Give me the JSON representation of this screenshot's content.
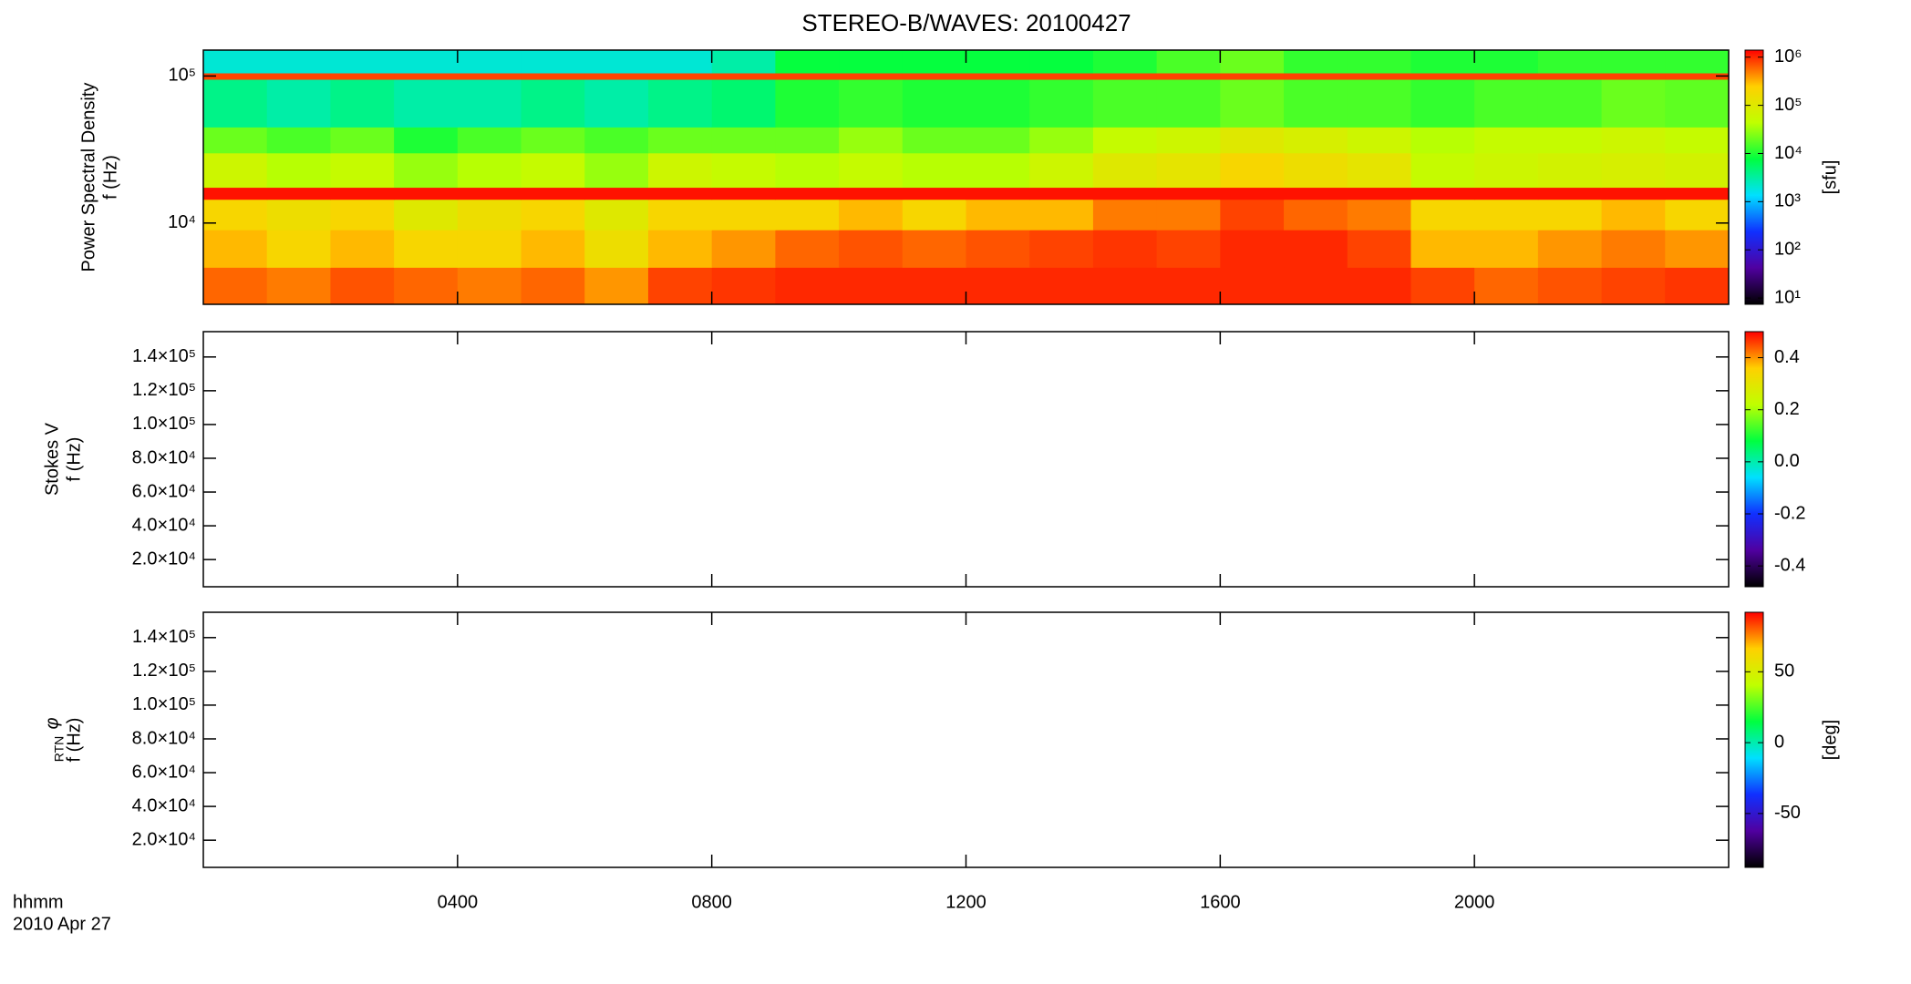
{
  "chart_data": {
    "type": "spectrogram",
    "title": "STEREO-B/WAVES: 20100427",
    "x_labels": [
      "hhmm",
      "2010 Apr 27"
    ],
    "xlim": [
      0,
      24
    ],
    "xticks": [
      {
        "value": 4,
        "label": "0400"
      },
      {
        "value": 8,
        "label": "0800"
      },
      {
        "value": 12,
        "label": "1200"
      },
      {
        "value": 16,
        "label": "1600"
      },
      {
        "value": 20,
        "label": "2000"
      }
    ],
    "colormap": [
      "#000000",
      "#5000a0",
      "#1030ff",
      "#00e0ff",
      "#00ff40",
      "#c0ff00",
      "#ffd000",
      "#ff0000"
    ],
    "panels": [
      {
        "ylabels": [
          "Power Spectral Density",
          "f (Hz)"
        ],
        "ylog": true,
        "ylim": [
          2800,
          150000
        ],
        "yticks": [
          {
            "value": 10000,
            "label": "10⁴"
          },
          {
            "value": 100000,
            "label": "10⁵"
          }
        ],
        "time_bins": [
          0,
          1,
          2,
          3,
          4,
          5,
          6,
          7,
          8,
          9,
          10,
          11,
          12,
          13,
          14,
          15,
          16,
          17,
          18,
          19,
          20,
          21,
          22,
          23,
          24
        ],
        "freq_bins": [
          2800,
          5000,
          9000,
          14500,
          17500,
          30000,
          45000,
          95000,
          105000,
          150000
        ],
        "z": [
          [
            600000,
            500000,
            700000,
            600000,
            500000,
            600000,
            400000,
            800000,
            900000,
            1000000,
            1000000,
            1000000,
            1000000,
            1000000,
            1000000,
            1000000,
            1000000,
            1000000,
            1000000,
            800000,
            600000,
            700000,
            800000,
            900000
          ],
          [
            300000,
            200000,
            300000,
            200000,
            200000,
            300000,
            150000,
            300000,
            400000,
            600000,
            700000,
            600000,
            700000,
            800000,
            900000,
            800000,
            1000000,
            1000000,
            800000,
            300000,
            300000,
            400000,
            500000,
            400000
          ],
          [
            200000,
            150000,
            200000,
            100000,
            150000,
            200000,
            100000,
            200000,
            200000,
            200000,
            300000,
            200000,
            300000,
            300000,
            500000,
            500000,
            800000,
            600000,
            500000,
            200000,
            200000,
            200000,
            300000,
            200000
          ],
          [
            1200000,
            1200000,
            1200000,
            1200000,
            1200000,
            1200000,
            1200000,
            1200000,
            1200000,
            1200000,
            1200000,
            1200000,
            1200000,
            1200000,
            1200000,
            1200000,
            1200000,
            1200000,
            1200000,
            1200000,
            1200000,
            1200000,
            1200000,
            1200000
          ],
          [
            60000,
            40000,
            50000,
            30000,
            40000,
            50000,
            30000,
            60000,
            50000,
            40000,
            50000,
            40000,
            40000,
            60000,
            100000,
            120000,
            200000,
            150000,
            120000,
            50000,
            60000,
            70000,
            80000,
            70000
          ],
          [
            20000,
            15000,
            20000,
            10000,
            15000,
            20000,
            15000,
            20000,
            20000,
            20000,
            30000,
            20000,
            20000,
            30000,
            50000,
            60000,
            100000,
            80000,
            60000,
            40000,
            50000,
            50000,
            60000,
            50000
          ],
          [
            4000,
            3000,
            4000,
            3000,
            3000,
            4000,
            3000,
            4000,
            5000,
            10000,
            12000,
            10000,
            10000,
            12000,
            15000,
            15000,
            20000,
            15000,
            15000,
            12000,
            15000,
            15000,
            20000,
            18000
          ],
          [
            800000,
            800000,
            800000,
            800000,
            800000,
            800000,
            800000,
            800000,
            800000,
            800000,
            800000,
            800000,
            800000,
            800000,
            800000,
            800000,
            800000,
            800000,
            800000,
            800000,
            800000,
            800000,
            800000,
            800000
          ],
          [
            2000,
            2000,
            2000,
            2000,
            2000,
            2000,
            2000,
            2000,
            3000,
            8000,
            8000,
            8000,
            8000,
            8000,
            10000,
            15000,
            20000,
            12000,
            12000,
            10000,
            10000,
            12000,
            12000,
            12000
          ]
        ],
        "colorbar": {
          "label": "[sfu]",
          "log": true,
          "zlim": [
            7.4,
            1400000
          ],
          "zticks": [
            {
              "value": 10,
              "label": "10¹"
            },
            {
              "value": 100,
              "label": "10²"
            },
            {
              "value": 1000,
              "label": "10³"
            },
            {
              "value": 10000,
              "label": "10⁴"
            },
            {
              "value": 100000,
              "label": "10⁵"
            },
            {
              "value": 1000000,
              "label": "10⁶"
            }
          ]
        }
      },
      {
        "ylabels": [
          "Stokes V",
          "f (Hz)"
        ],
        "ylog": false,
        "ylim": [
          3900,
          155000
        ],
        "yticks": [
          {
            "value": 20000,
            "label": "2.0×10⁴"
          },
          {
            "value": 40000,
            "label": "4.0×10⁴"
          },
          {
            "value": 60000,
            "label": "6.0×10⁴"
          },
          {
            "value": 80000,
            "label": "8.0×10⁴"
          },
          {
            "value": 100000,
            "label": "1.0×10⁵"
          },
          {
            "value": 120000,
            "label": "1.2×10⁵"
          },
          {
            "value": 140000,
            "label": "1.4×10⁵"
          }
        ],
        "colorbar": {
          "log": false,
          "zlim": [
            -0.48,
            0.5
          ],
          "zticks": [
            {
              "value": -0.4,
              "label": "-0.4"
            },
            {
              "value": -0.2,
              "label": "-0.2"
            },
            {
              "value": 0,
              "label": "0.0"
            },
            {
              "value": 0.2,
              "label": "0.2"
            },
            {
              "value": 0.4,
              "label": "0.4"
            }
          ]
        }
      },
      {
        "ylabel_symbol": "φ",
        "ylabel_subscript": "RTN",
        "ylabels": [
          "f (Hz)"
        ],
        "ylog": false,
        "ylim": [
          3900,
          155000
        ],
        "yticks": [
          {
            "value": 20000,
            "label": "2.0×10⁴"
          },
          {
            "value": 40000,
            "label": "4.0×10⁴"
          },
          {
            "value": 60000,
            "label": "6.0×10⁴"
          },
          {
            "value": 80000,
            "label": "8.0×10⁴"
          },
          {
            "value": 100000,
            "label": "1.0×10⁵"
          },
          {
            "value": 120000,
            "label": "1.2×10⁵"
          },
          {
            "value": 140000,
            "label": "1.4×10⁵"
          }
        ],
        "colorbar": {
          "label": "[deg]",
          "log": false,
          "zlim": [
            -88,
            92
          ],
          "zticks": [
            -50,
            0,
            50
          ]
        }
      }
    ]
  }
}
